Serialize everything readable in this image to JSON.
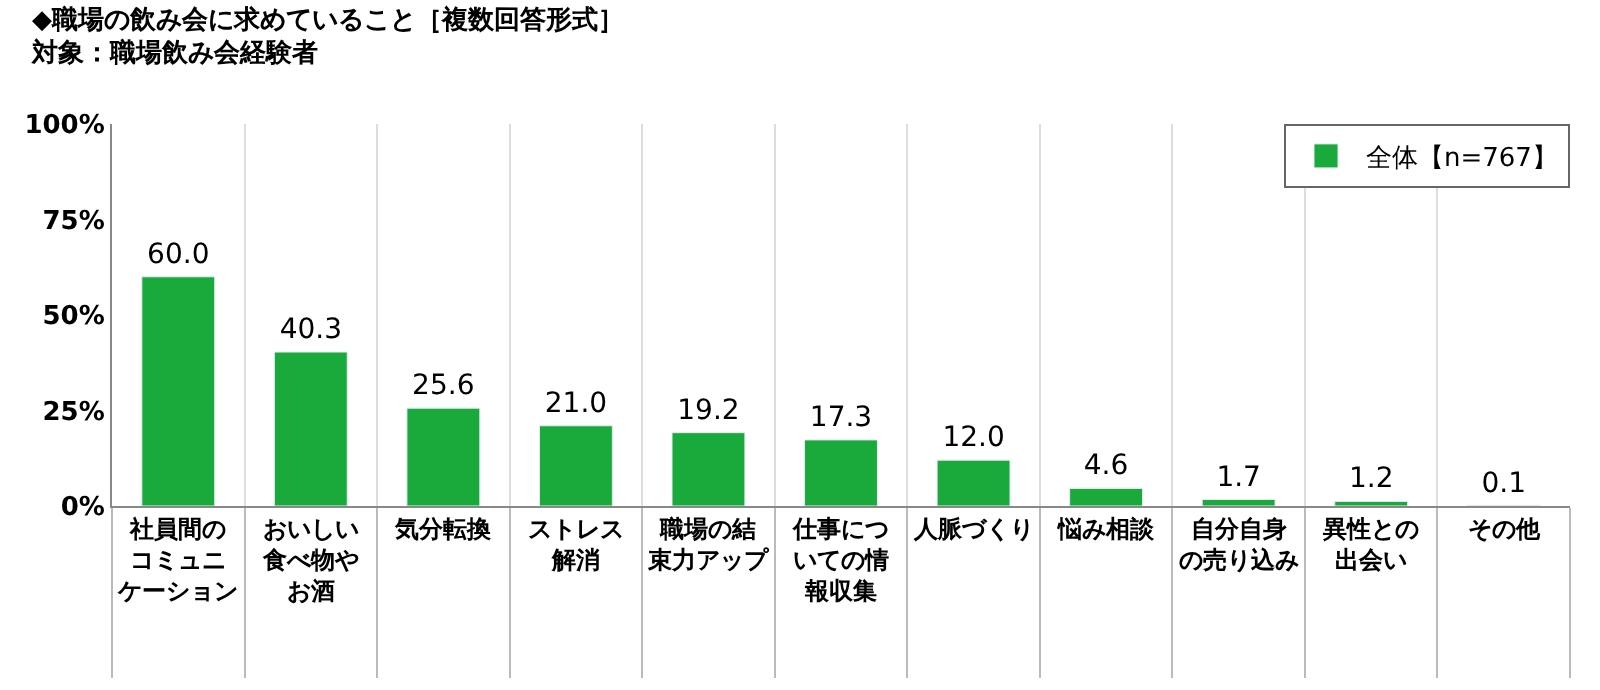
{
  "chart_data": {
    "type": "bar",
    "title": "◆職場の飲み会に求めていること［複数回答形式］",
    "subtitle": "対象：職場飲み会経験者",
    "categories": [
      "社員間のコミュニケーション",
      "おいしい食べ物やお酒",
      "気分転換",
      "ストレス解消",
      "職場の結束力アップ",
      "仕事についての情報収集",
      "人脈づくり",
      "悩み相談",
      "自分自身の売り込み",
      "異性との出会い",
      "その他"
    ],
    "series": [
      {
        "name": "全体【n=767】",
        "color": "#1aaa3c",
        "values": [
          60.0,
          40.3,
          25.6,
          21.0,
          19.2,
          17.3,
          12.0,
          4.6,
          1.7,
          1.2,
          0.1
        ],
        "value_labels": [
          "60.0",
          "40.3",
          "25.6",
          "21.0",
          "19.2",
          "17.3",
          "12.0",
          "4.6",
          "1.7",
          "1.2",
          "0.1"
        ]
      }
    ],
    "ylim": [
      0,
      100
    ],
    "yticks": [
      {
        "value": 0,
        "label": "0%"
      },
      {
        "value": 25,
        "label": "25%"
      },
      {
        "value": 50,
        "label": "50%"
      },
      {
        "value": 75,
        "label": "75%"
      },
      {
        "value": 100,
        "label": "100%"
      }
    ],
    "legend": "top right",
    "grid": "x"
  }
}
